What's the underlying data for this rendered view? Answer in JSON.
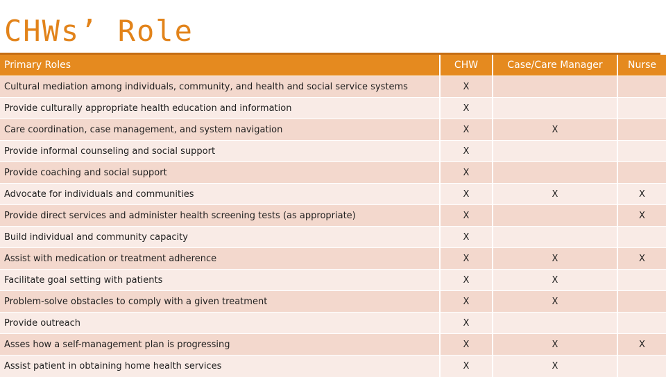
{
  "title": "CHWs’ Role",
  "table": {
    "headers": [
      "Primary Roles",
      "CHW",
      "Case/Care Manager",
      "Nurse"
    ],
    "rows": [
      {
        "role": "Cultural mediation among individuals, community, and health and social service systems",
        "chw": "X",
        "case": "",
        "nurse": ""
      },
      {
        "role": "Provide culturally appropriate health education and information",
        "chw": "X",
        "case": "",
        "nurse": ""
      },
      {
        "role": "Care coordination, case management, and system navigation",
        "chw": "X",
        "case": "X",
        "nurse": ""
      },
      {
        "role": "Provide informal counseling and social support",
        "chw": "X",
        "case": "",
        "nurse": ""
      },
      {
        "role": "Provide coaching and social support",
        "chw": "X",
        "case": "",
        "nurse": ""
      },
      {
        "role": "Advocate for individuals and communities",
        "chw": "X",
        "case": "X",
        "nurse": "X"
      },
      {
        "role": "Provide direct services and administer health screening tests (as appropriate)",
        "chw": "X",
        "case": "",
        "nurse": "X"
      },
      {
        "role": "Build individual and community capacity",
        "chw": "X",
        "case": "",
        "nurse": ""
      },
      {
        "role": "Assist with medication or treatment adherence",
        "chw": "X",
        "case": "X",
        "nurse": "X"
      },
      {
        "role": "Facilitate goal setting with patients",
        "chw": "X",
        "case": "X",
        "nurse": ""
      },
      {
        "role": "Problem-solve obstacles to comply with a given treatment",
        "chw": "X",
        "case": "X",
        "nurse": ""
      },
      {
        "role": "Provide outreach",
        "chw": "X",
        "case": "",
        "nurse": ""
      },
      {
        "role": "Asses how a self-management plan is progressing",
        "chw": "X",
        "case": "X",
        "nurse": "X"
      },
      {
        "role": "Assist patient in obtaining home health services",
        "chw": "X",
        "case": "X",
        "nurse": ""
      }
    ]
  },
  "colors": {
    "title": "#e2831a",
    "header_bg": "#e58a1f",
    "row_dark": "#f3d8cd",
    "row_light": "#f9ebe6"
  }
}
